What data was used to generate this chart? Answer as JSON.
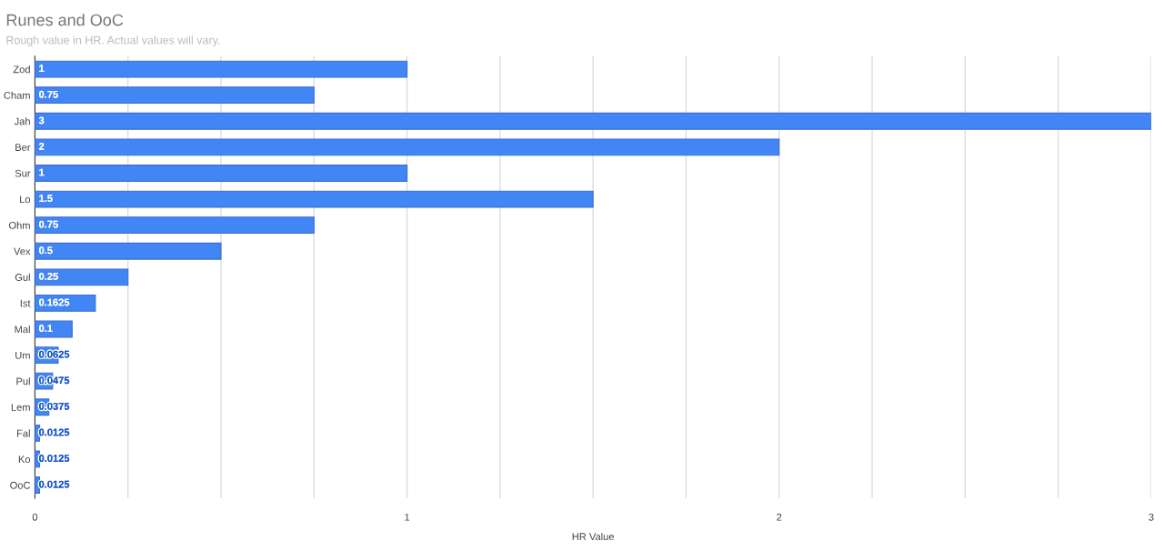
{
  "chart_data": {
    "type": "bar",
    "orientation": "horizontal",
    "title": "Runes and OoC",
    "subtitle": "Rough value in HR. Actual values will vary.",
    "xlabel": "HR Value",
    "categories": [
      "Zod",
      "Cham",
      "Jah",
      "Ber",
      "Sur",
      "Lo",
      "Ohm",
      "Vex",
      "Gul",
      "Ist",
      "Mal",
      "Um",
      "Pul",
      "Lem",
      "Fal",
      "Ko",
      "OoC"
    ],
    "values": [
      1,
      0.75,
      3,
      2,
      1,
      1.5,
      0.75,
      0.5,
      0.25,
      0.1625,
      0.1,
      0.0625,
      0.0475,
      0.0375,
      0.0125,
      0.0125,
      0.0125
    ],
    "color": "#4285f4",
    "xlim": [
      0,
      3
    ],
    "xticks": [
      0,
      {
        "value": 0.25,
        "label": null
      },
      {
        "value": 0.5,
        "label": null
      },
      {
        "value": 0.75,
        "label": null
      },
      1,
      {
        "value": 1.25,
        "label": null
      },
      {
        "value": 1.5,
        "label": null
      },
      {
        "value": 1.75,
        "label": null
      },
      2,
      {
        "value": 2.25,
        "label": null
      },
      {
        "value": 2.5,
        "label": null
      },
      {
        "value": 2.75,
        "label": null
      },
      3
    ],
    "grid": "x",
    "data_labels": true,
    "legend": false
  }
}
